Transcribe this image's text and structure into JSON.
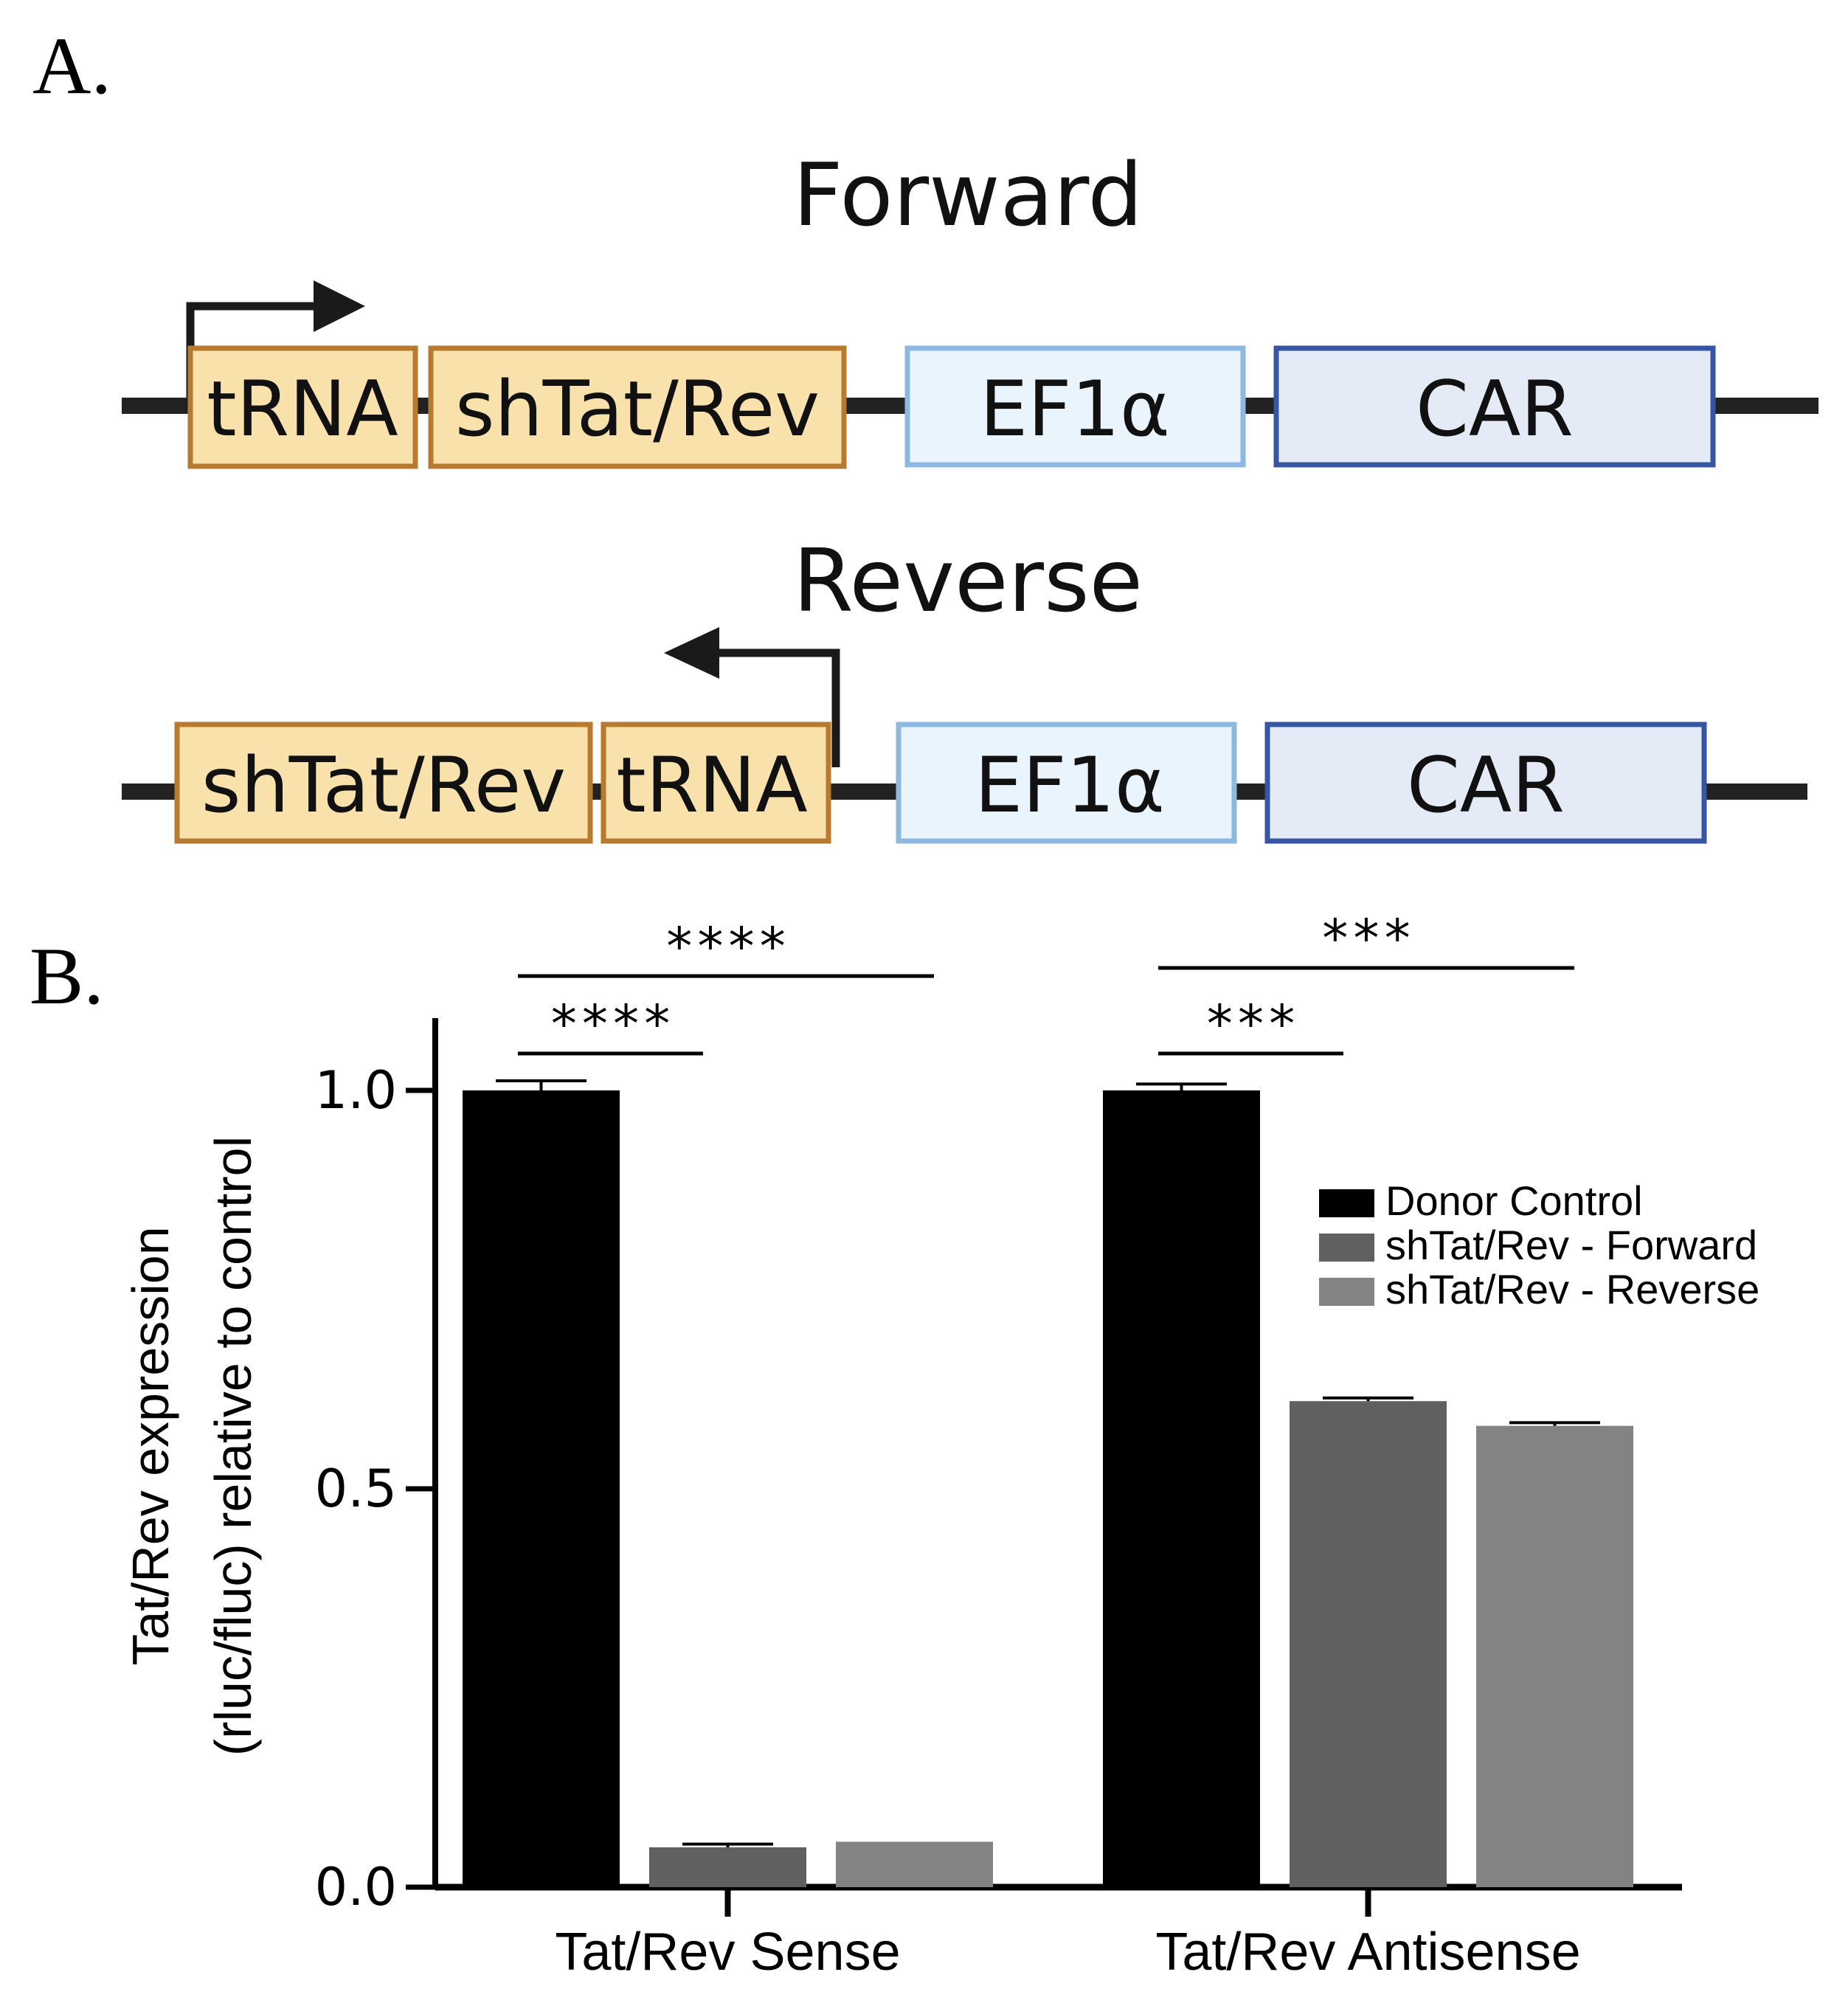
{
  "panels": {
    "a_label": "A.",
    "b_label": "B."
  },
  "diagram": {
    "forward": {
      "title": "Forward",
      "elements": [
        "tRNA",
        "shTat/Rev",
        "EF1α",
        "CAR"
      ]
    },
    "reverse": {
      "title": "Reverse",
      "elements": [
        "shTat/Rev",
        "tRNA",
        "EF1α",
        "CAR"
      ]
    },
    "colors": {
      "shrna_fill": "#f8e1ab",
      "shrna_stroke": "#b77a2e",
      "ef1a_fill": "#eaf4fc",
      "ef1a_stroke": "#8eb8e2",
      "car_fill": "#e5ebf6",
      "car_stroke": "#3656a3",
      "backbone": "#222222"
    }
  },
  "chart_data": {
    "type": "bar",
    "categories": [
      "Tat/Rev Sense",
      "Tat/Rev Antisense"
    ],
    "series": [
      {
        "name": "Donor Control",
        "values": [
          1.0,
          1.0
        ],
        "errors": [
          0.012,
          0.008
        ],
        "color": "#000000"
      },
      {
        "name": "shTat/Rev - Forward",
        "values": [
          0.05,
          0.61
        ],
        "errors": [
          0.004,
          0.004
        ],
        "color": "#5f605f"
      },
      {
        "name": "shTat/Rev - Reverse",
        "values": [
          0.057,
          0.579
        ],
        "errors": [
          0.0,
          0.004
        ],
        "color": "#838383"
      }
    ],
    "ylabel_line1": "Tat/Rev expression",
    "ylabel_line2": "(rluc/fluc) relative to control",
    "xlabel": "",
    "ylim": [
      0,
      1.1
    ],
    "yticks": [
      0.0,
      0.5,
      1.0
    ],
    "ytick_labels": [
      "0.0",
      "0.5",
      "1.0"
    ],
    "legend_position": "right",
    "significance": [
      {
        "category": 0,
        "from_series": 0,
        "to_series": 2,
        "label": "****",
        "level": 2
      },
      {
        "category": 0,
        "from_series": 0,
        "to_series": 1,
        "label": "****",
        "level": 1
      },
      {
        "category": 1,
        "from_series": 0,
        "to_series": 2,
        "label": "***",
        "level": 2
      },
      {
        "category": 1,
        "from_series": 0,
        "to_series": 1,
        "label": "***",
        "level": 1
      }
    ]
  }
}
